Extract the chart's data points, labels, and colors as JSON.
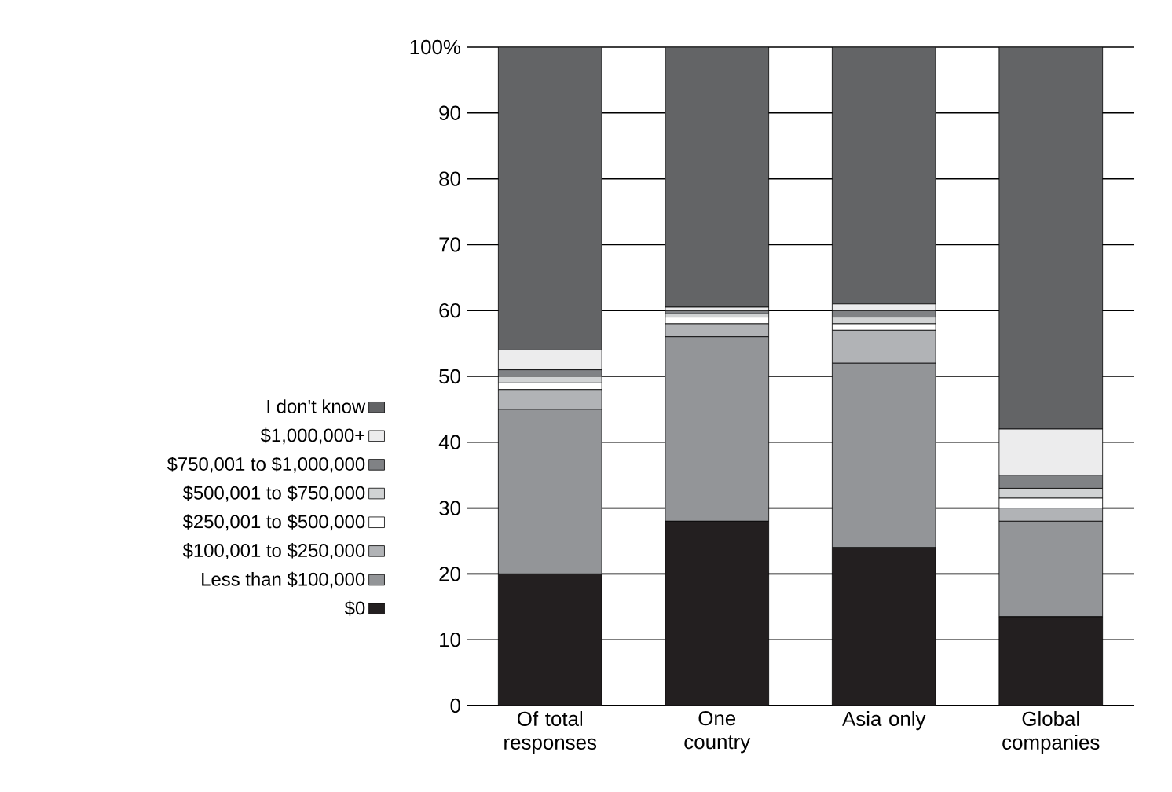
{
  "chart_data": {
    "type": "bar",
    "stacked": true,
    "categories": [
      "Of total responses",
      "One country",
      "Asia only",
      "Global companies"
    ],
    "ylim": [
      0,
      100
    ],
    "yticks": [
      0,
      10,
      20,
      30,
      40,
      50,
      60,
      70,
      80,
      90,
      {
        "value": 100,
        "label": "100%"
      }
    ],
    "grid": "y",
    "legend": "left",
    "series": [
      {
        "name": "$0",
        "color": "#231f20",
        "values": [
          20,
          28,
          24,
          13.5
        ]
      },
      {
        "name": "Less than $100,000",
        "color": "#939598",
        "values": [
          25,
          28,
          28,
          14.5
        ]
      },
      {
        "name": "$100,001 to $250,000",
        "color": "#b1b3b6",
        "values": [
          3,
          2,
          5,
          2
        ]
      },
      {
        "name": "$250,001 to $500,000",
        "color": "#ffffff",
        "values": [
          1,
          1,
          1,
          1.5
        ]
      },
      {
        "name": "$500,001 to $750,000",
        "color": "#d1d3d4",
        "values": [
          1,
          0.5,
          1,
          1.5
        ]
      },
      {
        "name": "$750,001 to $1,000,000",
        "color": "#808285",
        "values": [
          1,
          0.5,
          1,
          2
        ]
      },
      {
        "name": "$1,000,000+",
        "color": "#ececed",
        "values": [
          3,
          0.5,
          1,
          7
        ]
      },
      {
        "name": "I don't know",
        "color": "#636466",
        "values": [
          46,
          39.5,
          39,
          58
        ]
      }
    ]
  }
}
